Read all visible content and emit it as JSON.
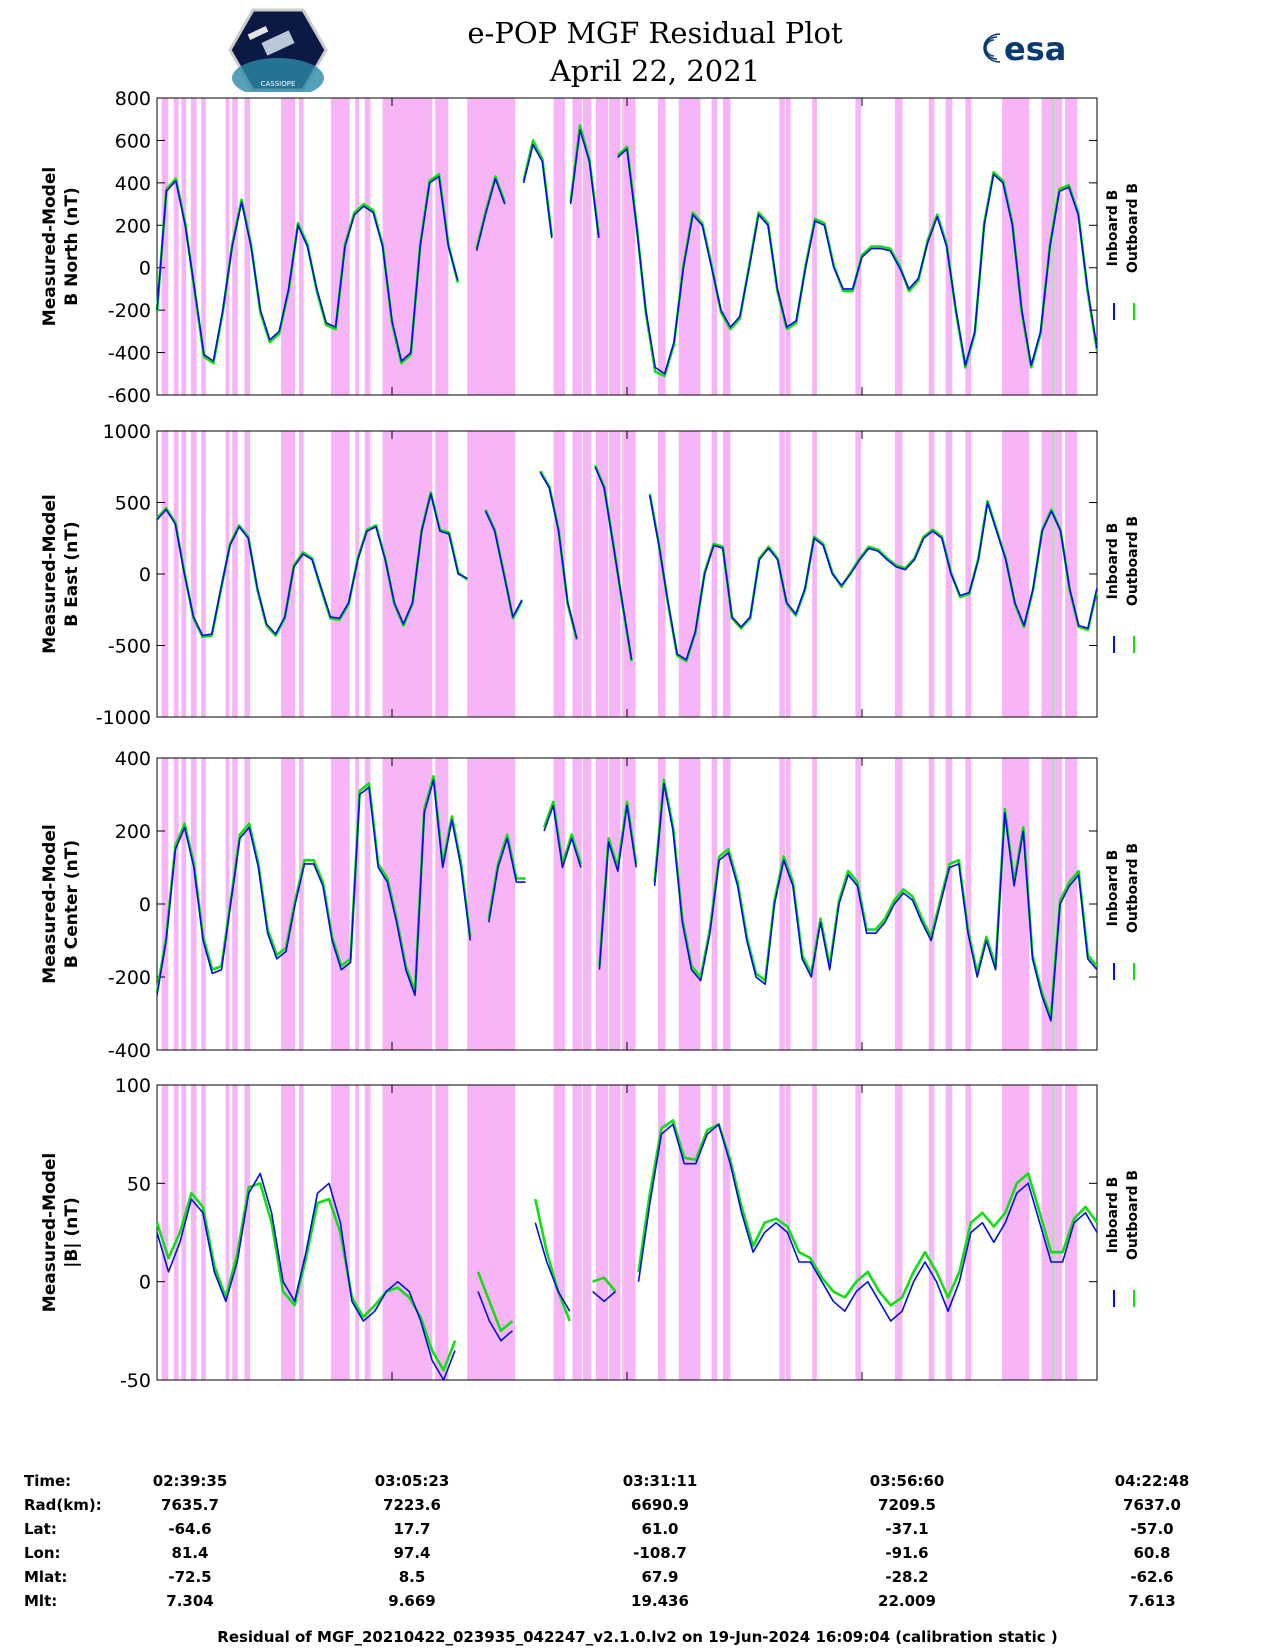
{
  "header": {
    "title_line1": "e-POP MGF Residual Plot",
    "title_line2": "April 22, 2021",
    "left_logo": "cassiope-mission-patch",
    "left_logo_text": "CASSIOPE",
    "right_logo_text": "esa"
  },
  "colors": {
    "inboard": "#0010e0",
    "outboard": "#10e010",
    "shade": "#f7b5f7",
    "gap": "#cccccc"
  },
  "legend": {
    "inboard": "Inboard B",
    "outboard": "Outboard B"
  },
  "chart_data": [
    {
      "type": "line",
      "ylabel": [
        "Measured-Model",
        "B North (nT)"
      ],
      "ylim": [
        -600,
        800
      ],
      "yticks": [
        800,
        600,
        400,
        200,
        0,
        -200,
        -400,
        -600
      ],
      "series": [
        {
          "name": "Inboard B",
          "values": [
            -200,
            360,
            410,
            200,
            -100,
            -410,
            -440,
            -200,
            100,
            310,
            100,
            -200,
            -340,
            -300,
            -100,
            200,
            100,
            -100,
            -260,
            -280,
            100,
            250,
            290,
            260,
            100,
            -250,
            -440,
            -400,
            100,
            400,
            430,
            100,
            -60,
            null,
            80,
            260,
            420,
            300,
            null,
            400,
            580,
            500,
            140,
            null,
            300,
            650,
            500,
            140,
            null,
            520,
            560,
            200,
            -200,
            -470,
            -500,
            -350,
            0,
            250,
            200,
            0,
            -200,
            -280,
            -230,
            0,
            250,
            200,
            -100,
            -280,
            -250,
            0,
            220,
            200,
            0,
            -100,
            -100,
            50,
            90,
            90,
            80,
            0,
            -100,
            -50,
            120,
            240,
            100,
            -200,
            -460,
            -300,
            200,
            440,
            400,
            200,
            -200,
            -460,
            -300,
            100,
            360,
            380,
            250,
            -100,
            -380
          ]
        },
        {
          "name": "Outboard B",
          "values": [
            -210,
            370,
            420,
            210,
            -110,
            -420,
            -450,
            -210,
            110,
            320,
            110,
            -210,
            -350,
            -310,
            -110,
            210,
            110,
            -110,
            -270,
            -290,
            110,
            260,
            300,
            270,
            110,
            -260,
            -450,
            -410,
            110,
            410,
            440,
            110,
            -70,
            null,
            90,
            270,
            430,
            310,
            null,
            410,
            600,
            510,
            150,
            null,
            310,
            670,
            510,
            150,
            null,
            530,
            570,
            210,
            -210,
            -490,
            -510,
            -360,
            10,
            260,
            210,
            10,
            -210,
            -290,
            -240,
            10,
            260,
            210,
            -110,
            -290,
            -260,
            10,
            230,
            210,
            10,
            -110,
            -110,
            60,
            100,
            100,
            90,
            10,
            -110,
            -60,
            130,
            250,
            110,
            -210,
            -470,
            -310,
            210,
            450,
            410,
            210,
            -210,
            -470,
            -310,
            110,
            370,
            390,
            260,
            -110,
            -390
          ]
        }
      ]
    },
    {
      "type": "line",
      "ylabel": [
        "Measured-Model",
        "B East (nT)"
      ],
      "ylim": [
        -1000,
        1000
      ],
      "yticks": [
        1000,
        500,
        0,
        -500,
        -1000
      ],
      "series": [
        {
          "name": "Inboard B",
          "values": [
            380,
            450,
            350,
            0,
            -300,
            -430,
            -420,
            -100,
            200,
            330,
            250,
            -100,
            -350,
            -420,
            -300,
            50,
            140,
            100,
            -100,
            -300,
            -310,
            -200,
            100,
            300,
            330,
            100,
            -200,
            -350,
            -200,
            300,
            560,
            300,
            280,
            0,
            -30,
            null,
            440,
            300,
            0,
            -300,
            -180,
            null,
            710,
            600,
            300,
            -200,
            -450,
            null,
            750,
            600,
            200,
            -200,
            -600,
            null,
            550,
            200,
            -200,
            -560,
            -600,
            -400,
            0,
            200,
            180,
            -300,
            -370,
            -300,
            100,
            180,
            100,
            -200,
            -280,
            -100,
            250,
            200,
            0,
            -80,
            0,
            100,
            180,
            160,
            100,
            50,
            30,
            100,
            250,
            300,
            250,
            0,
            -150,
            -130,
            100,
            500,
            300,
            100,
            -200,
            -360,
            -100,
            300,
            440,
            300,
            -100,
            -360,
            -380,
            -100
          ]
        },
        {
          "name": "Outboard B",
          "values": [
            390,
            460,
            360,
            10,
            -310,
            -440,
            -430,
            -110,
            210,
            340,
            260,
            -110,
            -360,
            -430,
            -310,
            60,
            150,
            110,
            -110,
            -310,
            -320,
            -210,
            110,
            310,
            340,
            110,
            -210,
            -360,
            -210,
            310,
            570,
            310,
            290,
            10,
            -40,
            null,
            450,
            310,
            10,
            -310,
            -190,
            null,
            720,
            610,
            310,
            -210,
            -460,
            null,
            760,
            610,
            210,
            -210,
            -610,
            null,
            560,
            210,
            -210,
            -570,
            -610,
            -410,
            10,
            210,
            190,
            -310,
            -380,
            -310,
            110,
            190,
            110,
            -210,
            -290,
            -110,
            260,
            210,
            10,
            -90,
            10,
            110,
            190,
            170,
            110,
            60,
            40,
            110,
            260,
            310,
            260,
            10,
            -160,
            -140,
            110,
            510,
            310,
            110,
            -210,
            -370,
            -110,
            310,
            450,
            310,
            -110,
            -370,
            -390,
            -110
          ]
        }
      ]
    },
    {
      "type": "line",
      "ylabel": [
        "Measured-Model",
        "B Center (nT)"
      ],
      "ylim": [
        -400,
        400
      ],
      "yticks": [
        400,
        200,
        0,
        -200,
        -400
      ],
      "series": [
        {
          "name": "Inboard B",
          "values": [
            -250,
            -100,
            150,
            210,
            100,
            -100,
            -190,
            -180,
            0,
            180,
            210,
            100,
            -80,
            -150,
            -130,
            0,
            110,
            110,
            50,
            -100,
            -180,
            -160,
            300,
            320,
            100,
            60,
            -50,
            -180,
            -250,
            250,
            340,
            100,
            230,
            100,
            -100,
            null,
            -50,
            100,
            180,
            60,
            60,
            null,
            200,
            270,
            100,
            180,
            100,
            null,
            -180,
            170,
            90,
            270,
            100,
            null,
            50,
            330,
            200,
            -50,
            -180,
            -210,
            -80,
            120,
            140,
            50,
            -100,
            -200,
            -220,
            0,
            120,
            50,
            -150,
            -200,
            -50,
            -180,
            0,
            80,
            50,
            -80,
            -80,
            -50,
            0,
            30,
            10,
            -50,
            -100,
            0,
            100,
            110,
            -80,
            -200,
            -100,
            -180,
            250,
            50,
            200,
            -150,
            -250,
            -320,
            0,
            50,
            80,
            -150,
            -180
          ]
        },
        {
          "name": "Outboard B",
          "values": [
            -240,
            -90,
            160,
            220,
            110,
            -90,
            -180,
            -170,
            10,
            190,
            220,
            110,
            -70,
            -140,
            -120,
            10,
            120,
            120,
            60,
            -90,
            -170,
            -150,
            310,
            330,
            110,
            70,
            -40,
            -170,
            -240,
            260,
            350,
            110,
            240,
            110,
            -90,
            null,
            -40,
            110,
            190,
            70,
            70,
            null,
            210,
            280,
            110,
            190,
            110,
            null,
            -170,
            180,
            100,
            280,
            110,
            null,
            60,
            340,
            210,
            -40,
            -170,
            -200,
            -70,
            130,
            150,
            60,
            -90,
            -190,
            -210,
            10,
            130,
            60,
            -140,
            -190,
            -40,
            -170,
            10,
            90,
            60,
            -70,
            -70,
            -40,
            10,
            40,
            20,
            -40,
            -90,
            10,
            110,
            120,
            -70,
            -190,
            -90,
            -170,
            260,
            60,
            210,
            -140,
            -240,
            -310,
            10,
            60,
            90,
            -140,
            -170
          ]
        }
      ]
    },
    {
      "type": "line",
      "ylabel": [
        "Measured-Model",
        "|B| (nT)"
      ],
      "ylim": [
        -50,
        100
      ],
      "yticks": [
        100,
        50,
        0,
        -50
      ],
      "series": [
        {
          "name": "Inboard B",
          "values": [
            25,
            5,
            20,
            42,
            35,
            5,
            -10,
            10,
            45,
            55,
            35,
            0,
            -10,
            15,
            45,
            50,
            30,
            -10,
            -20,
            -15,
            -5,
            0,
            -5,
            -20,
            -40,
            -50,
            -35,
            null,
            -5,
            -20,
            -30,
            -25,
            null,
            30,
            10,
            -5,
            -15,
            null,
            -5,
            -10,
            -5,
            null,
            0,
            40,
            75,
            80,
            60,
            60,
            75,
            80,
            60,
            35,
            15,
            25,
            30,
            25,
            10,
            10,
            0,
            -10,
            -15,
            -5,
            0,
            -10,
            -20,
            -15,
            0,
            10,
            0,
            -15,
            0,
            25,
            30,
            20,
            30,
            45,
            50,
            30,
            10,
            10,
            30,
            35,
            25
          ]
        },
        {
          "name": "Outboard B",
          "values": [
            30,
            12,
            25,
            45,
            38,
            8,
            -8,
            14,
            48,
            50,
            30,
            -5,
            -12,
            12,
            40,
            42,
            25,
            -8,
            -18,
            -12,
            -5,
            -3,
            -8,
            -18,
            -35,
            -45,
            -30,
            null,
            5,
            -10,
            -25,
            -20,
            null,
            42,
            15,
            -5,
            -20,
            null,
            0,
            2,
            -5,
            null,
            5,
            45,
            78,
            82,
            63,
            62,
            77,
            80,
            62,
            38,
            18,
            30,
            32,
            28,
            15,
            12,
            2,
            -5,
            -8,
            0,
            5,
            -5,
            -12,
            -8,
            5,
            15,
            5,
            -8,
            5,
            30,
            35,
            28,
            35,
            50,
            55,
            35,
            15,
            15,
            32,
            38,
            30
          ]
        }
      ]
    }
  ],
  "info_table": {
    "labels": [
      "Time:",
      "Rad(km):",
      "Lat:",
      "Lon:",
      "Mlat:",
      "Mlt:"
    ],
    "columns": [
      [
        "02:39:35",
        "7635.7",
        "-64.6",
        "81.4",
        "-72.5",
        "7.304"
      ],
      [
        "03:05:23",
        "7223.6",
        "17.7",
        "97.4",
        "8.5",
        "9.669"
      ],
      [
        "03:31:11",
        "6690.9",
        "61.0",
        "-108.7",
        "67.9",
        "19.436"
      ],
      [
        "03:56:60",
        "7209.5",
        "-37.1",
        "-91.6",
        "-28.2",
        "22.009"
      ],
      [
        "04:22:48",
        "7637.0",
        "-57.0",
        "60.8",
        "-62.6",
        "7.613"
      ]
    ]
  },
  "footer": "Residual of MGF_20210422_023935_042247_v2.1.0.lv2 on 19-Jun-2024 16:09:04 (calibration static )"
}
